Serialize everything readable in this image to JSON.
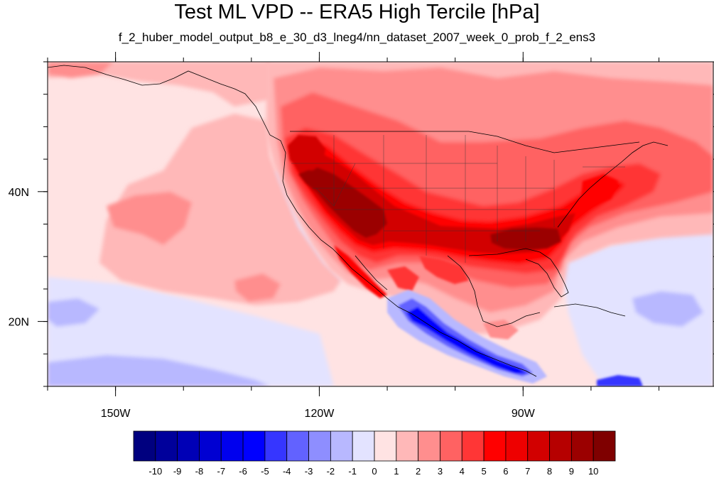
{
  "title": "Test ML VPD -- ERA5 High Tercile [hPa]",
  "subtitle": "f_2_huber_model_output_b8_e_30_d3_lneg4/nn_dataset_2007_week_0_prob_f_2_ens3",
  "map": {
    "lon_range": [
      -160,
      -62
    ],
    "lat_range": [
      10,
      60
    ],
    "x_ticks": [
      {
        "lon": -150,
        "label": "150W"
      },
      {
        "lon": -120,
        "label": "120W"
      },
      {
        "lon": -90,
        "label": "90W"
      }
    ],
    "y_ticks": [
      {
        "lat": 20,
        "label": "20N"
      },
      {
        "lat": 40,
        "label": "40N"
      }
    ]
  },
  "colorbar": {
    "labels": [
      "-10",
      "-9",
      "-8",
      "-7",
      "-6",
      "-5",
      "-4",
      "-3",
      "-2",
      "-1",
      "0",
      "1",
      "2",
      "3",
      "4",
      "5",
      "6",
      "7",
      "8",
      "9",
      "10"
    ],
    "colors": [
      "#00007f",
      "#00009b",
      "#0000b6",
      "#0000d2",
      "#0000ee",
      "#0000ff",
      "#3636ff",
      "#6262ff",
      "#8e8eff",
      "#b8b8ff",
      "#e3e3ff",
      "#ffe3e3",
      "#ffb8b8",
      "#ff8e8e",
      "#ff6262",
      "#ff3636",
      "#ff0000",
      "#ee0000",
      "#d20000",
      "#b60000",
      "#9b0000",
      "#7f0000"
    ]
  }
}
